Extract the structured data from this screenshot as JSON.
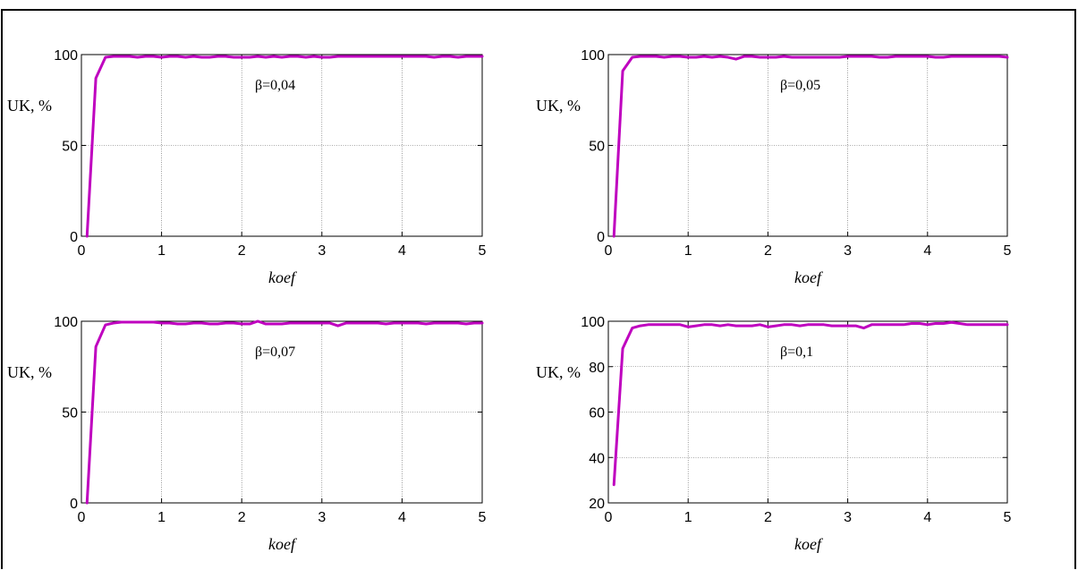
{
  "chart_data": [
    {
      "type": "line",
      "xlabel": "koef",
      "ylabel": "UK, %",
      "annotation": "β=0,04",
      "xlim": [
        0,
        5
      ],
      "ylim": [
        0,
        100
      ],
      "xticks": [
        0,
        1,
        2,
        3,
        4,
        5
      ],
      "yticks": [
        0,
        50,
        100
      ],
      "grid": true,
      "color": "#bf00bf",
      "series": [
        {
          "x": [
            0.07,
            0.18,
            0.3,
            0.4,
            0.5,
            0.6,
            0.7,
            0.8,
            0.9,
            1.0,
            1.1,
            1.2,
            1.3,
            1.4,
            1.5,
            1.6,
            1.7,
            1.8,
            1.9,
            2.0,
            2.1,
            2.2,
            2.3,
            2.4,
            2.5,
            2.6,
            2.7,
            2.8,
            2.9,
            3.0,
            3.1,
            3.2,
            3.3,
            3.4,
            3.5,
            3.6,
            3.7,
            3.8,
            3.9,
            4.0,
            4.1,
            4.2,
            4.3,
            4.4,
            4.5,
            4.6,
            4.7,
            4.8,
            4.9,
            5.0
          ],
          "y": [
            0,
            87,
            98.5,
            99,
            99,
            99,
            98.5,
            99,
            99,
            98.5,
            99,
            99,
            98.5,
            99,
            98.5,
            98.5,
            99,
            99,
            98.5,
            98.5,
            98.5,
            99,
            98.5,
            99,
            98.5,
            99,
            99,
            98.5,
            99,
            98.5,
            98.5,
            99,
            99,
            99,
            99,
            99,
            99,
            99,
            99,
            99,
            99,
            99,
            99,
            98.5,
            99,
            99,
            98.5,
            99,
            99,
            99
          ]
        }
      ]
    },
    {
      "type": "line",
      "xlabel": "koef",
      "ylabel": "UK, %",
      "annotation": "β=0,05",
      "xlim": [
        0,
        5
      ],
      "ylim": [
        0,
        100
      ],
      "xticks": [
        0,
        1,
        2,
        3,
        4,
        5
      ],
      "yticks": [
        0,
        50,
        100
      ],
      "grid": true,
      "color": "#bf00bf",
      "series": [
        {
          "x": [
            0.07,
            0.18,
            0.3,
            0.4,
            0.5,
            0.6,
            0.7,
            0.8,
            0.9,
            1.0,
            1.1,
            1.2,
            1.3,
            1.4,
            1.5,
            1.6,
            1.7,
            1.8,
            1.9,
            2.0,
            2.1,
            2.2,
            2.3,
            2.4,
            2.5,
            2.6,
            2.7,
            2.8,
            2.9,
            3.0,
            3.1,
            3.2,
            3.3,
            3.4,
            3.5,
            3.6,
            3.7,
            3.8,
            3.9,
            4.0,
            4.1,
            4.2,
            4.3,
            4.4,
            4.5,
            4.6,
            4.7,
            4.8,
            4.9,
            5.0
          ],
          "y": [
            0,
            91,
            98.5,
            99,
            99,
            99,
            98.5,
            99,
            99,
            98.5,
            98.5,
            99,
            98.5,
            99,
            98.5,
            97.5,
            99,
            99,
            98.5,
            98.5,
            98.5,
            99,
            98.5,
            98.5,
            98.5,
            98.5,
            98.5,
            98.5,
            98.5,
            99,
            99,
            99,
            99,
            98.5,
            98.5,
            99,
            99,
            99,
            99,
            99,
            98.5,
            98.5,
            99,
            99,
            99,
            99,
            99,
            99,
            99,
            98.5
          ]
        }
      ]
    },
    {
      "type": "line",
      "xlabel": "koef",
      "ylabel": "UK, %",
      "annotation": "β=0,07",
      "xlim": [
        0,
        5
      ],
      "ylim": [
        0,
        100
      ],
      "xticks": [
        0,
        1,
        2,
        3,
        4,
        5
      ],
      "yticks": [
        0,
        50,
        100
      ],
      "grid": true,
      "color": "#bf00bf",
      "series": [
        {
          "x": [
            0.07,
            0.18,
            0.3,
            0.4,
            0.5,
            0.6,
            0.7,
            0.8,
            0.9,
            1.0,
            1.1,
            1.2,
            1.3,
            1.4,
            1.5,
            1.6,
            1.7,
            1.8,
            1.9,
            2.0,
            2.1,
            2.2,
            2.3,
            2.4,
            2.5,
            2.6,
            2.7,
            2.8,
            2.9,
            3.0,
            3.1,
            3.2,
            3.3,
            3.4,
            3.5,
            3.6,
            3.7,
            3.8,
            3.9,
            4.0,
            4.1,
            4.2,
            4.3,
            4.4,
            4.5,
            4.6,
            4.7,
            4.8,
            4.9,
            5.0
          ],
          "y": [
            0,
            86,
            98,
            99,
            99.5,
            99.5,
            99.5,
            99.5,
            99.5,
            99,
            99,
            98.5,
            98.5,
            99,
            99,
            98.5,
            98.5,
            99,
            99,
            98.5,
            98.5,
            100,
            98.5,
            98.5,
            98.5,
            99,
            99,
            99,
            99,
            99,
            99,
            97.5,
            99,
            99,
            99,
            99,
            99,
            98.5,
            99,
            99,
            99,
            99,
            98.5,
            99,
            99,
            99,
            99,
            98.5,
            99,
            99
          ]
        }
      ]
    },
    {
      "type": "line",
      "xlabel": "koef",
      "ylabel": "UK, %",
      "annotation": "β=0,1",
      "xlim": [
        0,
        5
      ],
      "ylim": [
        20,
        100
      ],
      "xticks": [
        0,
        1,
        2,
        3,
        4,
        5
      ],
      "yticks": [
        20,
        40,
        60,
        80,
        100
      ],
      "grid": true,
      "color": "#bf00bf",
      "series": [
        {
          "x": [
            0.07,
            0.18,
            0.3,
            0.4,
            0.5,
            0.6,
            0.7,
            0.8,
            0.9,
            1.0,
            1.1,
            1.2,
            1.3,
            1.4,
            1.5,
            1.6,
            1.7,
            1.8,
            1.9,
            2.0,
            2.1,
            2.2,
            2.3,
            2.4,
            2.5,
            2.6,
            2.7,
            2.8,
            2.9,
            3.0,
            3.1,
            3.2,
            3.3,
            3.4,
            3.5,
            3.6,
            3.7,
            3.8,
            3.9,
            4.0,
            4.1,
            4.2,
            4.3,
            4.4,
            4.5,
            4.6,
            4.7,
            4.8,
            4.9,
            5.0
          ],
          "y": [
            28,
            88,
            97,
            98,
            98.5,
            98.5,
            98.5,
            98.5,
            98.5,
            97.5,
            98,
            98.5,
            98.5,
            98,
            98.5,
            98,
            98,
            98,
            98.5,
            97.5,
            98,
            98.5,
            98.5,
            98,
            98.5,
            98.5,
            98.5,
            98,
            98,
            98,
            98,
            97,
            98.5,
            98.5,
            98.5,
            98.5,
            98.5,
            99,
            99,
            98.5,
            99,
            99,
            99.5,
            99,
            98.5,
            98.5,
            98.5,
            98.5,
            98.5,
            98.5
          ]
        }
      ]
    }
  ]
}
